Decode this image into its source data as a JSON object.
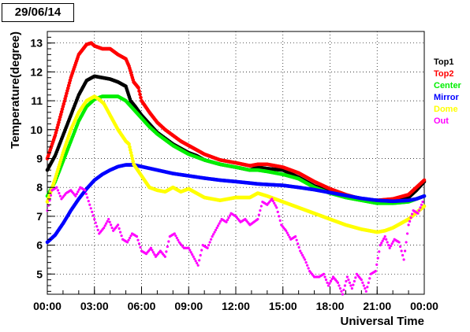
{
  "date_label": "29/06/14",
  "chart_data": {
    "type": "scatter",
    "title": "",
    "xlabel": "Universal Time",
    "ylabel": "Temperature(degree)",
    "xlim": [
      0,
      24
    ],
    "ylim": [
      4.3,
      13.4
    ],
    "x_ticks": [
      0,
      3,
      6,
      9,
      12,
      15,
      18,
      21,
      24
    ],
    "x_tick_labels": [
      "00:00",
      "03:00",
      "06:00",
      "09:00",
      "12:00",
      "15:00",
      "18:00",
      "21:00",
      "00:00"
    ],
    "y_ticks": [
      5,
      6,
      7,
      8,
      9,
      10,
      11,
      12,
      13
    ],
    "y_tick_labels": [
      "5",
      "6",
      "7",
      "8",
      "9",
      "10",
      "11",
      "12",
      "13"
    ],
    "grid": true,
    "legend_position": "right",
    "series": [
      {
        "name": "Top1",
        "color": "#000000",
        "x": [
          0,
          0.5,
          1,
          1.5,
          2,
          2.5,
          3,
          3.5,
          4,
          4.5,
          5,
          5.3,
          5.6,
          6,
          6.5,
          7,
          7.5,
          8,
          8.5,
          9,
          9.5,
          10,
          11,
          12,
          12.9,
          13.4,
          14,
          15,
          16,
          17,
          18,
          19,
          20,
          21,
          22,
          23,
          23.5,
          24
        ],
        "y": [
          8.6,
          9.1,
          9.8,
          10.5,
          11.2,
          11.7,
          11.85,
          11.8,
          11.75,
          11.65,
          11.5,
          11.0,
          10.8,
          10.5,
          10.2,
          9.9,
          9.7,
          9.5,
          9.35,
          9.2,
          9.1,
          8.95,
          8.8,
          8.7,
          8.6,
          8.7,
          8.65,
          8.6,
          8.35,
          8.05,
          7.85,
          7.7,
          7.6,
          7.55,
          7.55,
          7.65,
          7.9,
          8.2
        ]
      },
      {
        "name": "Top2",
        "color": "#ff0000",
        "x": [
          0,
          0.5,
          1,
          1.5,
          2,
          2.5,
          2.8,
          3,
          3.5,
          4,
          4.5,
          5,
          5.2,
          5.5,
          5.8,
          6,
          6.5,
          7,
          7.5,
          8,
          8.5,
          9,
          9.5,
          10,
          11,
          12,
          12.9,
          13.4,
          14,
          15,
          16,
          17,
          18,
          19,
          20,
          21,
          22,
          23,
          23.5,
          24
        ],
        "y": [
          9.0,
          9.8,
          10.8,
          11.8,
          12.6,
          12.95,
          13.0,
          12.9,
          12.8,
          12.8,
          12.6,
          12.45,
          12.2,
          11.65,
          11.45,
          11.0,
          10.6,
          10.25,
          10.0,
          9.8,
          9.6,
          9.45,
          9.3,
          9.15,
          8.95,
          8.85,
          8.75,
          8.8,
          8.8,
          8.7,
          8.5,
          8.2,
          7.95,
          7.75,
          7.6,
          7.55,
          7.6,
          7.75,
          8.0,
          8.25
        ]
      },
      {
        "name": "Center",
        "color": "#00ee00",
        "x": [
          0,
          0.5,
          1,
          1.5,
          2,
          2.5,
          3,
          3.5,
          4,
          4.5,
          5,
          5.5,
          6,
          6.5,
          7,
          7.5,
          8,
          8.5,
          9,
          9.5,
          10,
          11,
          12,
          12.9,
          13.4,
          14,
          15,
          16,
          17,
          18,
          19,
          20,
          21,
          22,
          23,
          23.5,
          24
        ],
        "y": [
          7.7,
          8.2,
          8.9,
          9.6,
          10.3,
          10.8,
          11.05,
          11.15,
          11.15,
          11.15,
          11.0,
          10.7,
          10.4,
          10.1,
          9.85,
          9.65,
          9.45,
          9.3,
          9.15,
          9.05,
          8.95,
          8.8,
          8.7,
          8.6,
          8.6,
          8.55,
          8.45,
          8.3,
          8.0,
          7.8,
          7.65,
          7.55,
          7.45,
          7.45,
          7.5,
          7.6,
          7.7
        ]
      },
      {
        "name": "Mirror",
        "color": "#0000ff",
        "x": [
          0,
          0.5,
          1,
          1.5,
          2,
          2.5,
          3,
          3.5,
          4,
          4.5,
          5,
          5.5,
          6,
          7,
          8,
          9,
          10,
          11,
          12,
          12.9,
          13.4,
          14,
          15,
          16,
          17,
          18,
          19,
          20,
          21,
          22,
          23,
          23.5,
          24
        ],
        "y": [
          6.1,
          6.35,
          6.75,
          7.2,
          7.6,
          7.95,
          8.25,
          8.45,
          8.6,
          8.72,
          8.78,
          8.78,
          8.72,
          8.6,
          8.48,
          8.4,
          8.32,
          8.25,
          8.2,
          8.15,
          8.12,
          8.1,
          8.07,
          8.0,
          7.92,
          7.82,
          7.72,
          7.62,
          7.55,
          7.52,
          7.55,
          7.6,
          7.7
        ]
      },
      {
        "name": "Dome",
        "color": "#ffff00",
        "x": [
          0,
          0.5,
          1,
          1.5,
          2,
          2.5,
          3,
          3.3,
          3.6,
          4,
          4.5,
          5,
          5.2,
          5.5,
          6,
          6.5,
          7,
          7.5,
          8,
          8.5,
          9,
          9.5,
          10,
          11,
          12,
          12.9,
          13.4,
          14,
          15,
          16,
          17,
          18,
          19,
          20,
          21,
          21.5,
          22,
          23,
          24
        ],
        "y": [
          7.5,
          8.3,
          9.2,
          10.0,
          10.6,
          11.0,
          11.15,
          11.05,
          10.9,
          10.5,
          10.0,
          9.6,
          9.5,
          8.8,
          8.4,
          8.0,
          7.9,
          7.85,
          8.0,
          7.85,
          7.95,
          7.8,
          7.65,
          7.55,
          7.65,
          7.65,
          7.8,
          7.7,
          7.5,
          7.3,
          7.1,
          6.9,
          6.7,
          6.55,
          6.45,
          6.5,
          6.6,
          6.9,
          7.35
        ]
      },
      {
        "name": "Out",
        "color": "#ff00ff",
        "x": [
          0,
          0.3,
          0.6,
          0.9,
          1.2,
          1.5,
          1.8,
          2.1,
          2.4,
          2.7,
          3.0,
          3.3,
          3.6,
          3.9,
          4.2,
          4.5,
          4.8,
          5.1,
          5.4,
          5.7,
          6.0,
          6.3,
          6.6,
          6.9,
          7.2,
          7.5,
          7.8,
          8.1,
          8.4,
          8.7,
          9.0,
          9.3,
          9.6,
          9.9,
          10.2,
          10.5,
          10.8,
          11.1,
          11.4,
          11.7,
          12.0,
          12.3,
          12.6,
          12.9,
          13.4,
          13.7,
          14.0,
          14.3,
          14.6,
          14.9,
          15.2,
          15.5,
          15.8,
          16.1,
          16.4,
          16.7,
          17.0,
          17.3,
          17.6,
          17.9,
          18.2,
          18.5,
          18.8,
          19.1,
          19.4,
          19.7,
          20.0,
          20.3,
          20.6,
          20.9,
          21.2,
          21.5,
          21.8,
          22.1,
          22.4,
          22.7,
          23.0,
          23.3,
          23.6,
          23.9
        ],
        "y": [
          7.2,
          7.9,
          8.0,
          7.6,
          7.8,
          7.9,
          7.7,
          8.0,
          7.9,
          7.4,
          6.9,
          6.4,
          6.6,
          6.9,
          6.5,
          6.7,
          6.2,
          6.1,
          6.4,
          6.3,
          5.8,
          5.7,
          5.9,
          5.6,
          5.8,
          5.6,
          6.3,
          6.4,
          6.1,
          5.9,
          5.9,
          5.6,
          5.3,
          6.0,
          5.9,
          6.3,
          6.6,
          6.9,
          6.8,
          7.1,
          7.0,
          6.8,
          6.9,
          6.7,
          6.9,
          7.5,
          7.4,
          7.6,
          7.3,
          6.7,
          6.5,
          6.2,
          6.3,
          5.8,
          5.5,
          5.1,
          4.9,
          4.9,
          5.0,
          4.6,
          4.9,
          4.7,
          4.3,
          4.9,
          4.5,
          5.0,
          4.8,
          4.4,
          5.0,
          5.1,
          6.0,
          6.3,
          5.9,
          6.2,
          6.1,
          5.5,
          6.7,
          7.2,
          7.1,
          7.5
        ]
      }
    ]
  }
}
